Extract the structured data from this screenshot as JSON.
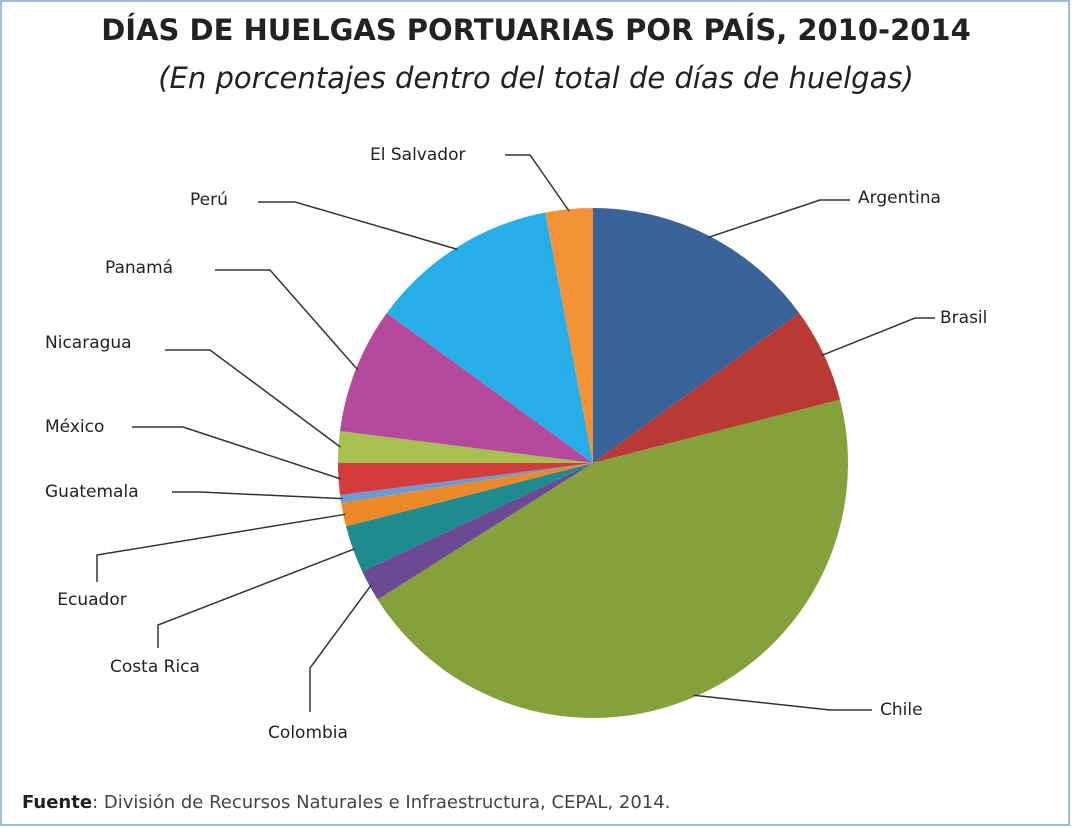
{
  "chart_data": {
    "type": "pie",
    "title": "DÍAS DE HUELGAS PORTUARIAS POR PAÍS, 2010-2014",
    "subtitle": "(En porcentajes dentro del total de días de huelgas)",
    "categories": [
      "Argentina",
      "Brasil",
      "Chile",
      "Colombia",
      "Costa Rica",
      "Ecuador",
      "Guatemala",
      "México",
      "Nicaragua",
      "Panamá",
      "Perú",
      "El Salvador"
    ],
    "values": [
      15,
      6,
      45,
      2,
      3,
      1.5,
      0.5,
      2,
      2,
      8,
      12,
      3
    ],
    "colors": [
      "#3a6399",
      "#b93a35",
      "#84a13b",
      "#6b4a93",
      "#1f8b8e",
      "#ec8a2a",
      "#6c9bd2",
      "#d23c3c",
      "#a8c050",
      "#b54a9d",
      "#27aee8",
      "#f39237"
    ],
    "source_label": "Fuente",
    "source_text": ": División de Recursos Naturales e Infraestructura, CEPAL, 2014."
  }
}
